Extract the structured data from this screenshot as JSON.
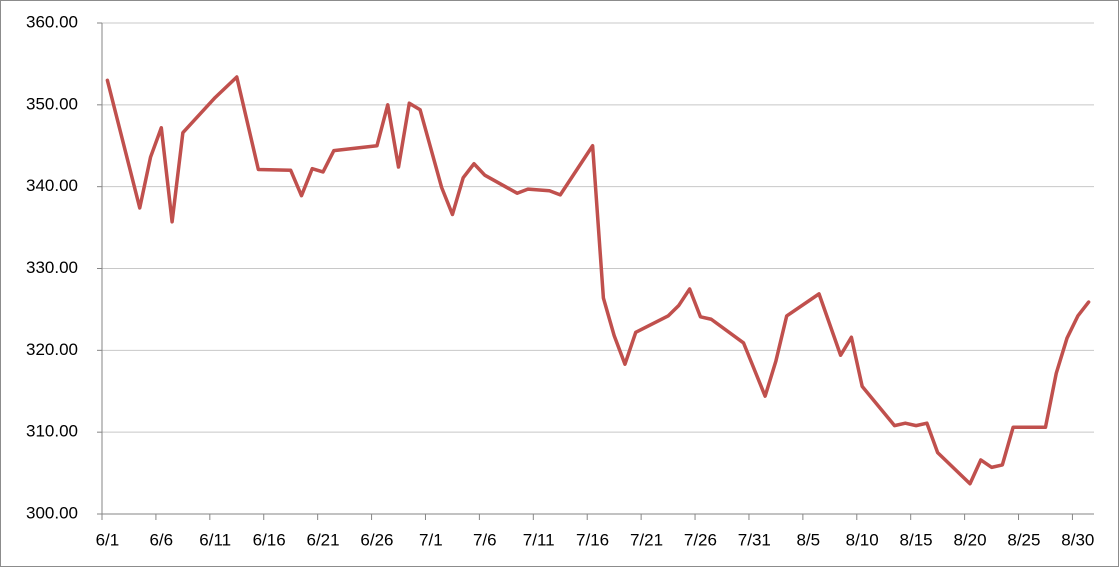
{
  "chart_data": {
    "type": "line",
    "x": [
      "6/1",
      "6/4",
      "6/5",
      "6/6",
      "6/7",
      "6/8",
      "6/11",
      "6/13",
      "6/15",
      "6/18",
      "6/19",
      "6/20",
      "6/21",
      "6/22",
      "6/26",
      "6/27",
      "6/28",
      "6/29",
      "6/30",
      "7/2",
      "7/3",
      "7/4",
      "7/5",
      "7/6",
      "7/9",
      "7/10",
      "7/12",
      "7/13",
      "7/16",
      "7/17",
      "7/18",
      "7/19",
      "7/20",
      "7/23",
      "7/24",
      "7/25",
      "7/26",
      "7/27",
      "7/30",
      "8/1",
      "8/2",
      "8/3",
      "8/6",
      "8/8",
      "8/9",
      "8/10",
      "8/13",
      "8/14",
      "8/15",
      "8/16",
      "8/17",
      "8/20",
      "8/21",
      "8/22",
      "8/23",
      "8/24",
      "8/27",
      "8/28",
      "8/29",
      "8/30",
      "8/31"
    ],
    "values": [
      353.0,
      337.4,
      343.6,
      347.2,
      335.7,
      346.6,
      350.9,
      353.4,
      342.1,
      342.0,
      338.9,
      342.2,
      341.8,
      344.4,
      345.0,
      350.0,
      342.4,
      350.2,
      349.4,
      339.9,
      336.6,
      341.1,
      342.8,
      341.4,
      339.2,
      339.7,
      339.5,
      339.0,
      345.0,
      326.4,
      321.8,
      318.3,
      322.2,
      324.2,
      325.5,
      327.5,
      324.1,
      323.8,
      320.9,
      314.4,
      318.7,
      324.2,
      326.9,
      319.4,
      321.6,
      315.6,
      310.8,
      311.1,
      310.8,
      311.1,
      307.5,
      303.7,
      306.6,
      305.7,
      306.0,
      310.6,
      310.6,
      317.2,
      321.5,
      324.2,
      325.9
    ],
    "color": "#c0504d",
    "xlim": [
      "6/1",
      "8/31"
    ],
    "xticks": [
      "6/1",
      "6/6",
      "6/11",
      "6/16",
      "6/21",
      "6/26",
      "7/1",
      "7/6",
      "7/11",
      "7/16",
      "7/21",
      "7/26",
      "7/31",
      "8/5",
      "8/10",
      "8/15",
      "8/20",
      "8/25",
      "8/30"
    ],
    "ylim": [
      300,
      360
    ],
    "yticks": [
      {
        "value": 300,
        "label": "300.00"
      },
      {
        "value": 310,
        "label": "310.00"
      },
      {
        "value": 320,
        "label": "320.00"
      },
      {
        "value": 330,
        "label": "330.00"
      },
      {
        "value": 340,
        "label": "340.00"
      },
      {
        "value": 350,
        "label": "350.00"
      },
      {
        "value": 360,
        "label": "360.00"
      }
    ],
    "grid": true
  }
}
